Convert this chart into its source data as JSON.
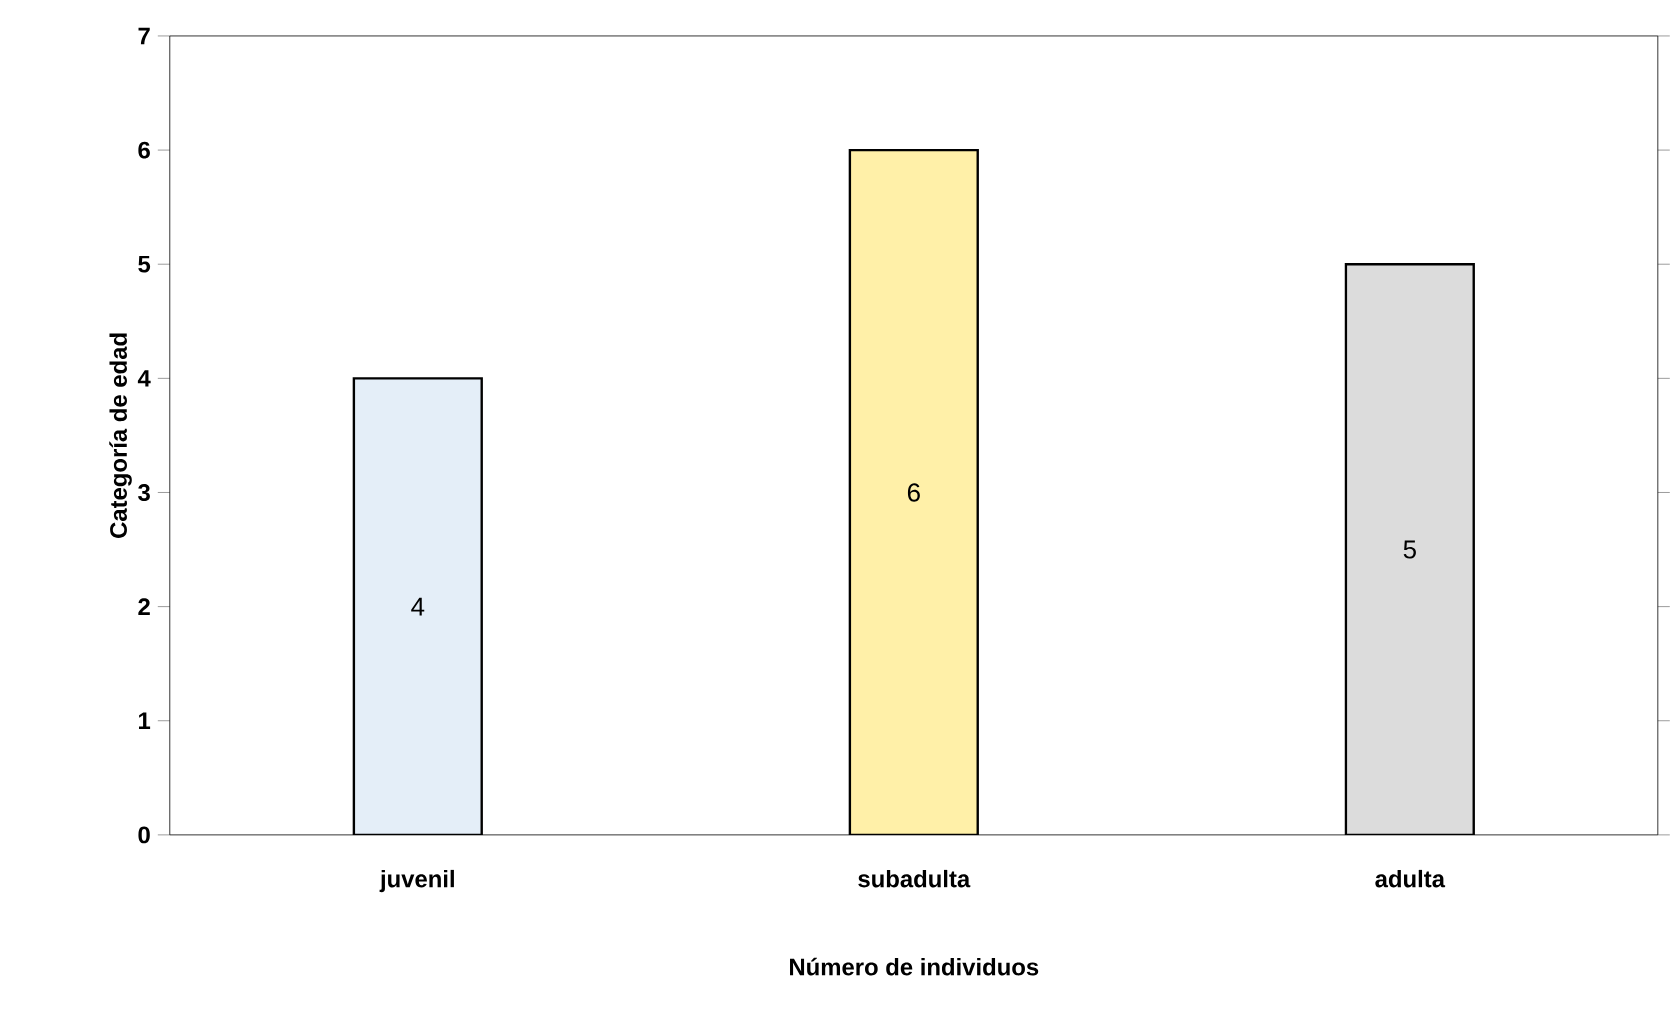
{
  "chart_data": {
    "type": "bar",
    "xlabel": "Número de individuos",
    "ylabel": "Categoría de edad",
    "categories": [
      "juvenil",
      "subadulta",
      "adulta"
    ],
    "values": [
      4,
      6,
      5
    ],
    "colors": [
      "#e4eef8",
      "#fff0a8",
      "#dcdcdc"
    ],
    "ylim": [
      0,
      7
    ],
    "yticks": [
      0,
      1,
      2,
      3,
      4,
      5,
      6,
      7
    ],
    "data_labels": true
  }
}
